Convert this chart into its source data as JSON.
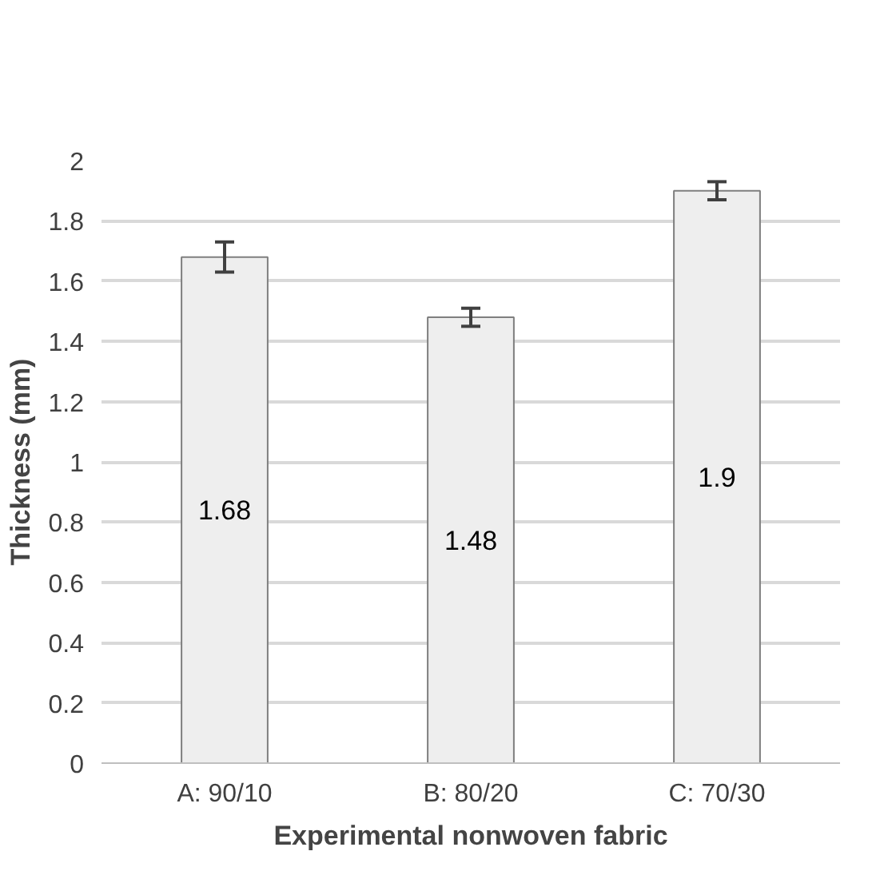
{
  "chart_data": {
    "type": "bar",
    "xlabel": "Experimental nonwoven fabric",
    "ylabel": "Thickness (mm)",
    "categories": [
      "A: 90/10",
      "B: 80/20",
      "C: 70/30"
    ],
    "values": [
      1.68,
      1.48,
      1.9
    ],
    "errors": [
      0.05,
      0.03,
      0.03
    ],
    "color": "#eeeeee",
    "ylim": [
      0,
      2
    ],
    "yticks": [
      0,
      0.2,
      0.4,
      0.6,
      0.8,
      1,
      1.2,
      1.4,
      1.6,
      1.8,
      2
    ],
    "grid": "y",
    "data_labels": true
  }
}
